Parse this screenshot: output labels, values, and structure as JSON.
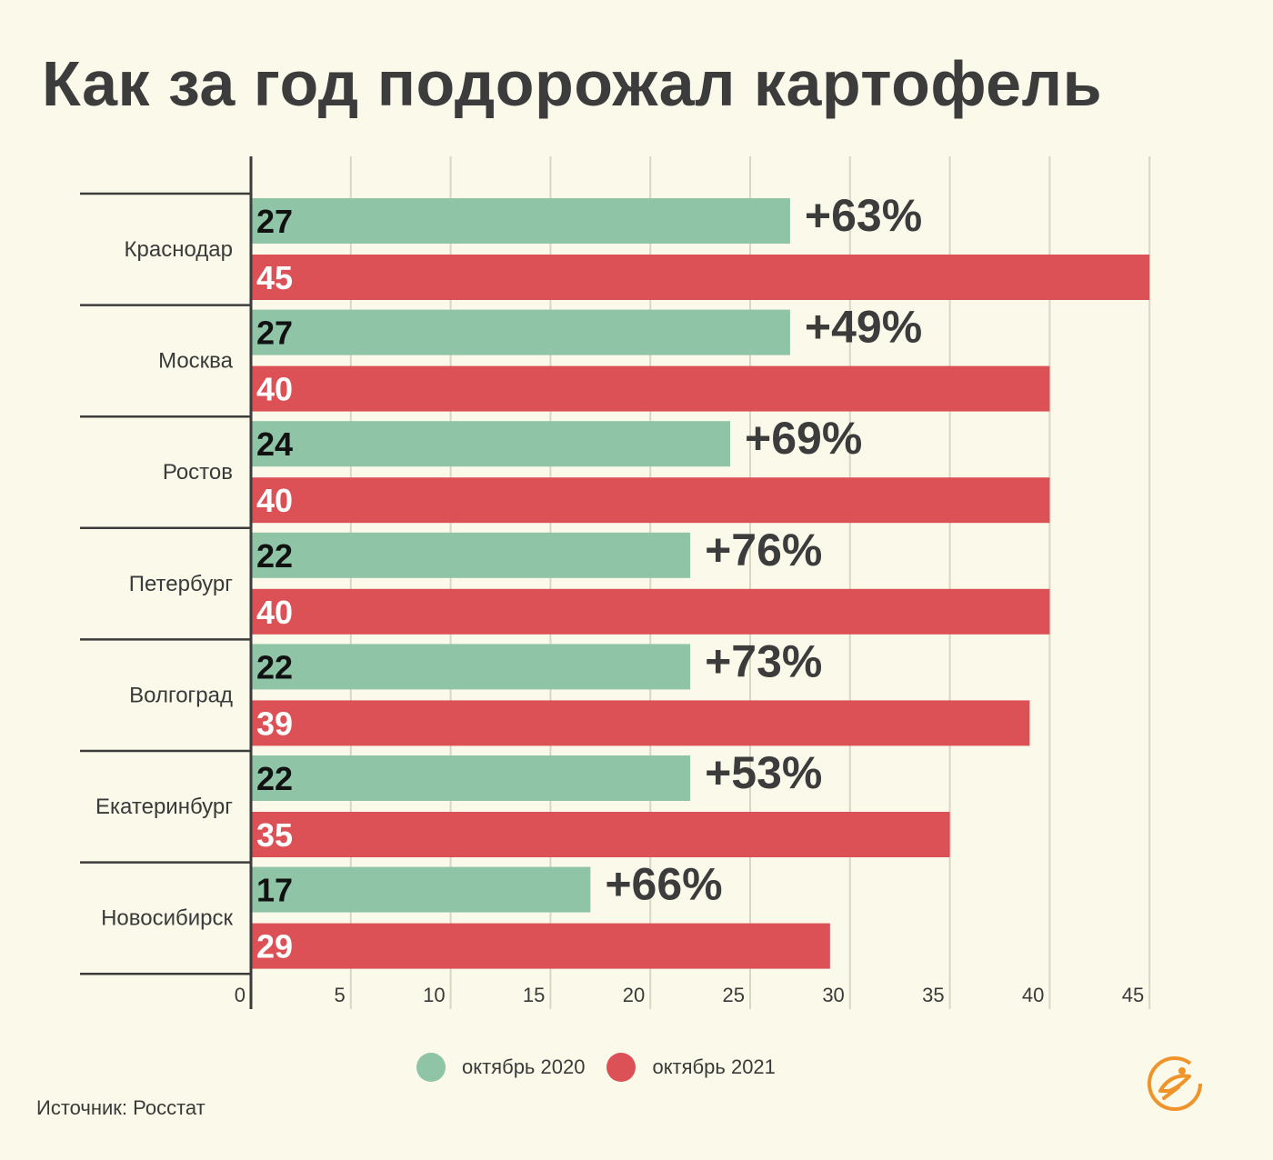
{
  "title": "Как за год подорожал картофель",
  "source": "Источник: Росстат",
  "colors": {
    "series_2020": "#8fc4a7",
    "series_2021": "#dc5156",
    "text": "#3c3c3c",
    "grid": "#d9d7c4"
  },
  "chart_data": {
    "type": "bar",
    "orientation": "horizontal",
    "title": "Как за год подорожал картофель",
    "categories": [
      "Краснодар",
      "Москва",
      "Ростов",
      "Петербург",
      "Волгоград",
      "Екатеринбург",
      "Новосибирск"
    ],
    "series": [
      {
        "name": "октябрь 2020",
        "values": [
          27,
          27,
          24,
          22,
          22,
          22,
          17
        ],
        "color": "#8fc4a7"
      },
      {
        "name": "октябрь 2021",
        "values": [
          45,
          40,
          40,
          40,
          39,
          35,
          29
        ],
        "color": "#dc5156"
      }
    ],
    "annotations": [
      "+63%",
      "+49%",
      "+69%",
      "+76%",
      "+73%",
      "+53%",
      "+66%"
    ],
    "x_ticks": [
      0,
      5,
      10,
      15,
      20,
      25,
      30,
      35,
      40,
      45
    ],
    "xlim": [
      0,
      45
    ],
    "grid": true,
    "legend": "bottom"
  },
  "logo_icon": "bird-in-circle-logo"
}
